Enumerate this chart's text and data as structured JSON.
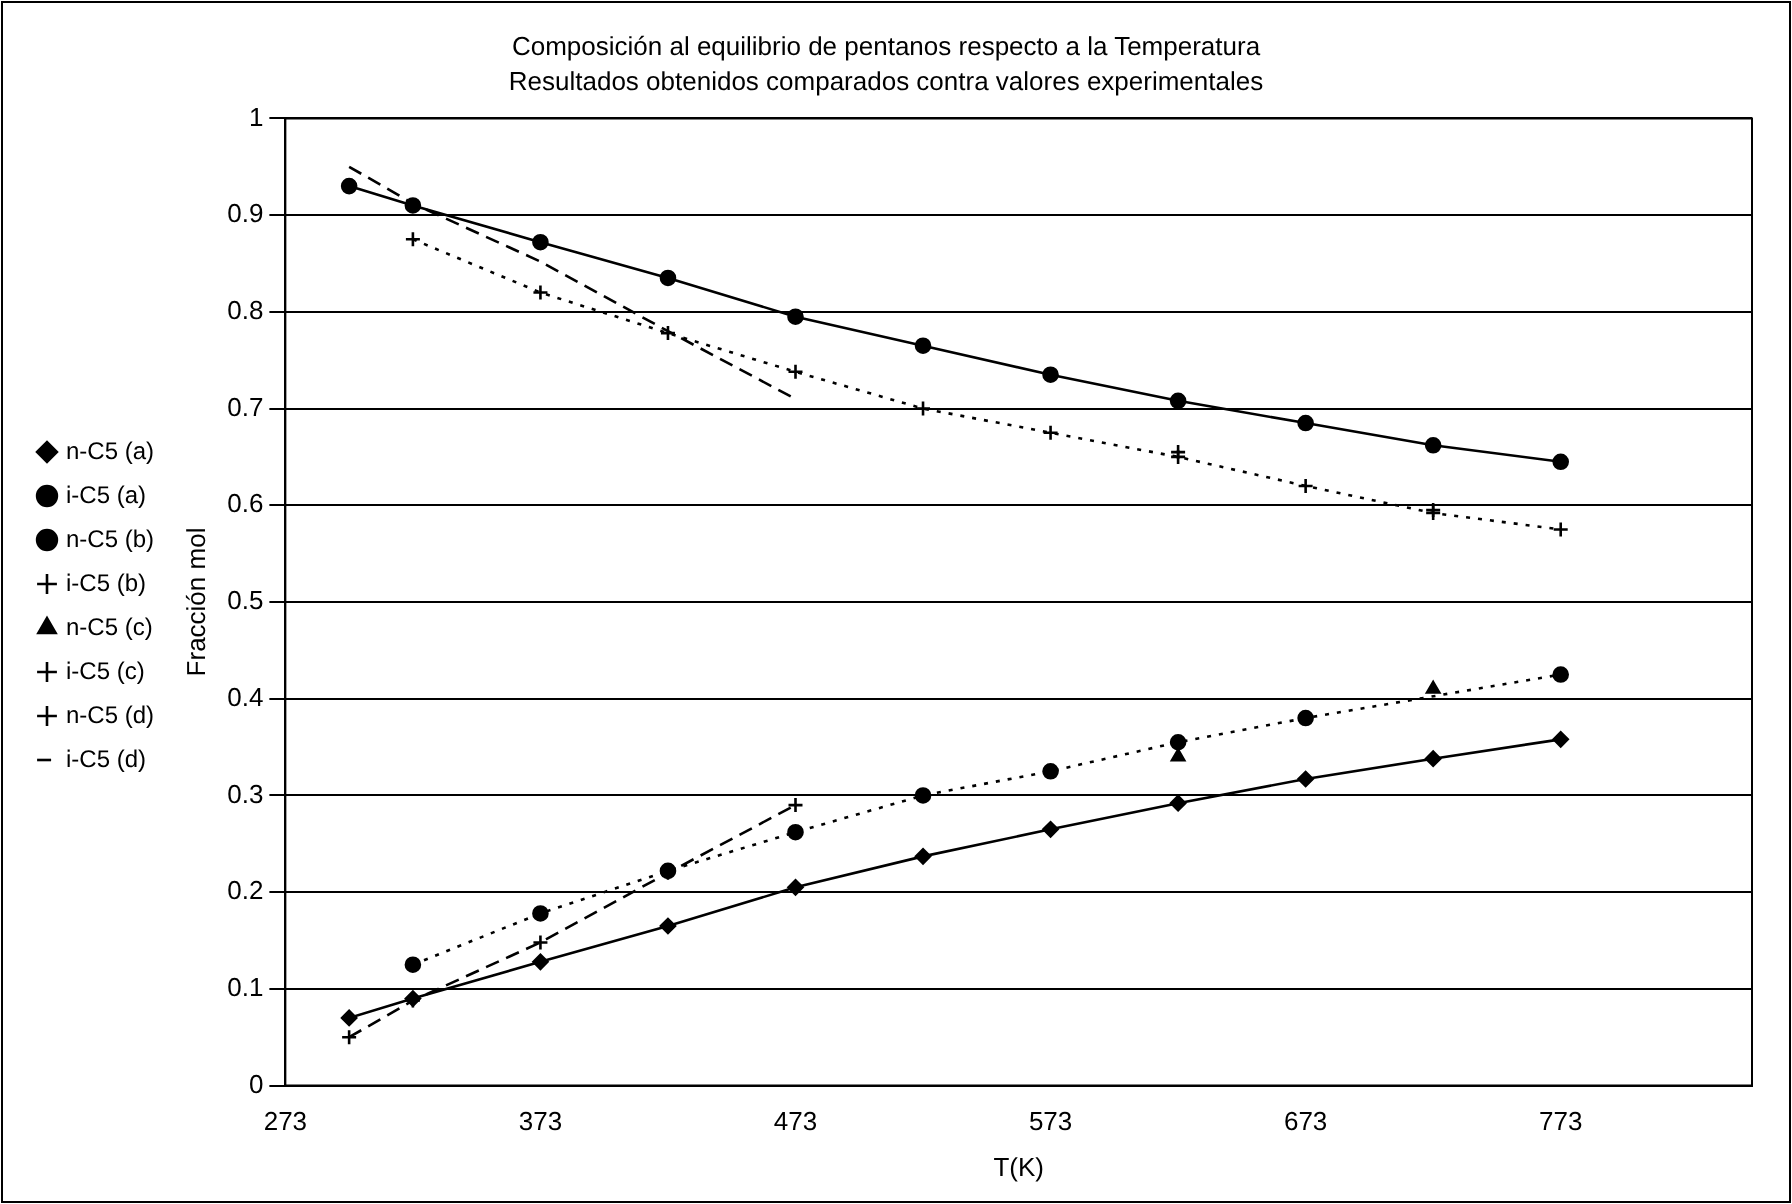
{
  "chart_data": {
    "type": "line",
    "title": "Composición al equilibrio de pentanos respecto a la Temperatura",
    "subtitle": "Resultados obtenidos comparados contra valores experimentales",
    "xlabel": "T(K)",
    "ylabel": "Fracción mol",
    "xlim": [
      273,
      848
    ],
    "xticks": [
      273,
      373,
      473,
      573,
      673,
      773
    ],
    "ylim": [
      0,
      1
    ],
    "yticks": [
      0,
      0.1,
      0.2,
      0.3,
      0.4,
      0.5,
      0.6,
      0.7,
      0.8,
      0.9,
      1
    ],
    "grid": "y",
    "legend": "left",
    "series": [
      {
        "name": "n-C5 (a)",
        "color": "#000000",
        "marker": "diamond",
        "line_style": "solid",
        "x": [
          298,
          323,
          373,
          423,
          473,
          523,
          573,
          623,
          673,
          723,
          773
        ],
        "values": [
          0.07,
          0.09,
          0.128,
          0.165,
          0.205,
          0.237,
          0.265,
          0.292,
          0.317,
          0.338,
          0.358
        ]
      },
      {
        "name": "i-C5 (a)",
        "color": "#000000",
        "marker": "circle",
        "line_style": "solid",
        "x": [
          298,
          323,
          373,
          423,
          473,
          523,
          573,
          623,
          673,
          723,
          773
        ],
        "values": [
          0.93,
          0.91,
          0.872,
          0.835,
          0.795,
          0.765,
          0.735,
          0.708,
          0.685,
          0.662,
          0.645
        ]
      },
      {
        "name": "n-C5 (b)",
        "color": "#000000",
        "marker": "circle",
        "line_style": "dotted",
        "x": [
          323,
          373,
          423,
          473,
          523,
          573,
          623,
          673,
          723,
          773
        ],
        "values": [
          0.125,
          0.178,
          0.222,
          0.262,
          0.3,
          0.325,
          0.355,
          0.38,
          null,
          0.425
        ]
      },
      {
        "name": "i-C5 (b)",
        "color": "#000000",
        "marker": "cross",
        "line_style": "dotted",
        "x": [
          323,
          373,
          423,
          473,
          523,
          573,
          623,
          673,
          723,
          773
        ],
        "values": [
          0.875,
          0.82,
          0.778,
          0.738,
          0.7,
          0.675,
          0.65,
          0.62,
          0.592,
          0.575
        ]
      },
      {
        "name": "n-C5 (c)",
        "type": "scatter",
        "color": "#000000",
        "marker": "triangle",
        "x": [
          623,
          723
        ],
        "values": [
          0.34,
          0.41
        ]
      },
      {
        "name": "i-C5 (c)",
        "type": "scatter",
        "color": "#000000",
        "marker": "cross",
        "x": [
          623,
          723
        ],
        "values": [
          0.655,
          0.595
        ]
      },
      {
        "name": "n-C5 (d)",
        "color": "#000000",
        "marker": "cross",
        "line_style": "dashed",
        "x": [
          298,
          323,
          373,
          423,
          473
        ],
        "values": [
          0.05,
          0.088,
          0.148,
          0.22,
          0.29
        ]
      },
      {
        "name": "i-C5 (d)",
        "color": "#000000",
        "marker": "none",
        "line_style": "dashed",
        "x": [
          298,
          323,
          373,
          423,
          473
        ],
        "values": [
          0.95,
          0.912,
          0.852,
          0.78,
          0.71
        ]
      }
    ]
  }
}
